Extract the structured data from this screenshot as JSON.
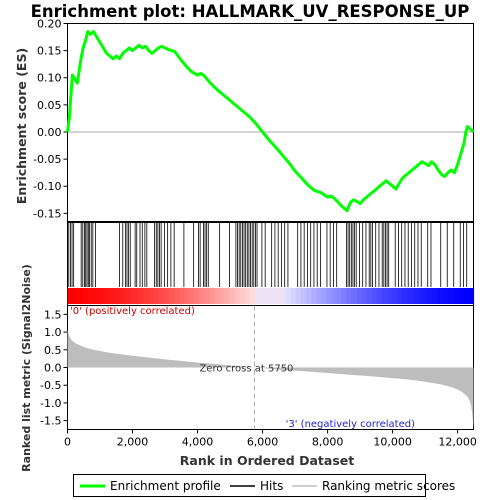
{
  "chart_data": {
    "type": "line",
    "title": "Enrichment plot: HALLMARK_UV_RESPONSE_UP",
    "colors": {
      "enrichment_line": "#00ff00",
      "hits": "#000000",
      "metric_fill": "#bdbdbd",
      "zero_line": "#aaaaaa",
      "positive_label": "#cc0000",
      "negative_label": "#2222cc",
      "gradient_positive": "#ff0000",
      "gradient_negative": "#0000ff"
    },
    "x_axis": {
      "label": "Rank in Ordered Dataset",
      "range": [
        0,
        12488
      ],
      "ticks": [
        0,
        2000,
        4000,
        6000,
        8000,
        10000,
        12000
      ],
      "tick_labels": [
        "0",
        "2,000",
        "4,000",
        "6,000",
        "8,000",
        "10,000",
        "12,000"
      ]
    },
    "top_panel": {
      "ylabel": "Enrichment score (ES)",
      "ylim": [
        -0.165,
        0.2
      ],
      "yticks": [
        -0.15,
        -0.1,
        -0.05,
        0.0,
        0.05,
        0.1,
        0.15,
        0.2
      ],
      "ytick_labels": [
        "-0.15",
        "-0.10",
        "-0.05",
        "0.00",
        "0.05",
        "0.10",
        "0.15",
        "0.20"
      ],
      "series": [
        {
          "name": "Enrichment profile",
          "x": [
            0,
            60,
            150,
            300,
            400,
            480,
            560,
            620,
            700,
            800,
            900,
            1000,
            1100,
            1200,
            1300,
            1400,
            1500,
            1600,
            1700,
            1800,
            1900,
            2000,
            2100,
            2200,
            2300,
            2400,
            2500,
            2600,
            2700,
            2800,
            2900,
            3000,
            3100,
            3200,
            3300,
            3400,
            3500,
            3600,
            3700,
            3800,
            3900,
            4000,
            4100,
            4200,
            4400,
            4600,
            4800,
            5000,
            5200,
            5400,
            5600,
            5800,
            6000,
            6200,
            6400,
            6600,
            6800,
            7000,
            7200,
            7400,
            7600,
            7800,
            8000,
            8100,
            8200,
            8300,
            8400,
            8500,
            8600,
            8700,
            8800,
            8900,
            9000,
            9100,
            9200,
            9300,
            9400,
            9500,
            9600,
            9700,
            9800,
            9900,
            10000,
            10100,
            10200,
            10300,
            10400,
            10500,
            10600,
            10700,
            10800,
            10900,
            11000,
            11100,
            11200,
            11300,
            11400,
            11500,
            11600,
            11700,
            11800,
            11900,
            12000,
            12100,
            12200,
            12250,
            12300,
            12350,
            12400,
            12450,
            12488
          ],
          "y": [
            0.0,
            0.03,
            0.105,
            0.09,
            0.13,
            0.155,
            0.17,
            0.185,
            0.18,
            0.185,
            0.175,
            0.165,
            0.155,
            0.145,
            0.14,
            0.135,
            0.14,
            0.135,
            0.145,
            0.15,
            0.155,
            0.15,
            0.155,
            0.16,
            0.155,
            0.158,
            0.15,
            0.145,
            0.15,
            0.155,
            0.158,
            0.155,
            0.152,
            0.15,
            0.148,
            0.14,
            0.132,
            0.125,
            0.118,
            0.112,
            0.108,
            0.105,
            0.108,
            0.104,
            0.09,
            0.078,
            0.068,
            0.058,
            0.048,
            0.038,
            0.028,
            0.015,
            0.0,
            -0.015,
            -0.028,
            -0.042,
            -0.056,
            -0.072,
            -0.085,
            -0.098,
            -0.108,
            -0.112,
            -0.12,
            -0.118,
            -0.122,
            -0.128,
            -0.135,
            -0.14,
            -0.145,
            -0.13,
            -0.125,
            -0.128,
            -0.132,
            -0.125,
            -0.12,
            -0.115,
            -0.11,
            -0.105,
            -0.1,
            -0.095,
            -0.09,
            -0.095,
            -0.1,
            -0.105,
            -0.095,
            -0.085,
            -0.08,
            -0.075,
            -0.07,
            -0.065,
            -0.06,
            -0.055,
            -0.058,
            -0.062,
            -0.055,
            -0.06,
            -0.07,
            -0.078,
            -0.082,
            -0.075,
            -0.07,
            -0.075,
            -0.06,
            -0.04,
            -0.02,
            0.0,
            0.01,
            0.008,
            0.005,
            0.002,
            0.0
          ]
        }
      ]
    },
    "hits_panel": {
      "name": "Hits",
      "positions": [
        40,
        90,
        140,
        190,
        420,
        470,
        520,
        560,
        600,
        640,
        680,
        730,
        780,
        860,
        1600,
        1700,
        1780,
        1830,
        1880,
        1930,
        2080,
        2130,
        2230,
        2300,
        2380,
        2440,
        2680,
        2730,
        2780,
        2830,
        2880,
        2980,
        3080,
        3180,
        3280,
        3580,
        3880,
        4030,
        4080,
        4180,
        4230,
        4280,
        4330,
        4680,
        4980,
        5180,
        5230,
        5280,
        5330,
        5380,
        5430,
        5480,
        5530,
        5580,
        5630,
        5680,
        5730,
        5780,
        5830,
        5980,
        6080,
        6280,
        6380,
        6480,
        6580,
        6680,
        6780,
        7080,
        7180,
        7280,
        7380,
        7480,
        7580,
        7680,
        7780,
        7980,
        8080,
        8180,
        8280,
        8580,
        8630,
        8680,
        8730,
        8780,
        8830,
        8880,
        8980,
        9080,
        9180,
        9280,
        9330,
        9380,
        9480,
        9580,
        9680,
        9730,
        9780,
        9830,
        9880,
        10080,
        10180,
        10280,
        10380,
        10480,
        10580,
        10680,
        10780,
        10880,
        11080,
        11180,
        11480,
        11680,
        11880,
        12080,
        12180,
        12280
      ]
    },
    "bottom_panel": {
      "ylabel": "Ranked list metric (Signal2Noise)",
      "ylim": [
        -1.75,
        1.75
      ],
      "yticks": [
        -1.5,
        -1.0,
        -0.5,
        0.0,
        0.5,
        1.0,
        1.5
      ],
      "ytick_labels": [
        "-1.5",
        "-1.0",
        "-0.5",
        "0.0",
        "0.5",
        "1.0",
        "1.5"
      ],
      "metric_profile": {
        "x": [
          0,
          20,
          60,
          120,
          250,
          500,
          800,
          1200,
          2000,
          3000,
          4000,
          5000,
          5750,
          6500,
          7500,
          8500,
          9500,
          10500,
          11000,
          11500,
          11800,
          12000,
          12150,
          12300,
          12400,
          12450,
          12488
        ],
        "y": [
          1.08,
          0.98,
          0.88,
          0.78,
          0.68,
          0.58,
          0.5,
          0.43,
          0.33,
          0.23,
          0.14,
          0.06,
          0.0,
          -0.06,
          -0.12,
          -0.19,
          -0.26,
          -0.34,
          -0.4,
          -0.48,
          -0.55,
          -0.62,
          -0.7,
          -0.82,
          -1.0,
          -1.3,
          -1.72
        ]
      },
      "zero_cross_label": "Zero cross at 5750",
      "zero_cross_x": 5750,
      "positive_label": "'0' (positively correlated)",
      "negative_label": "'3' (negatively correlated)"
    },
    "legend": [
      "Enrichment profile",
      "Hits",
      "Ranking metric scores"
    ]
  }
}
